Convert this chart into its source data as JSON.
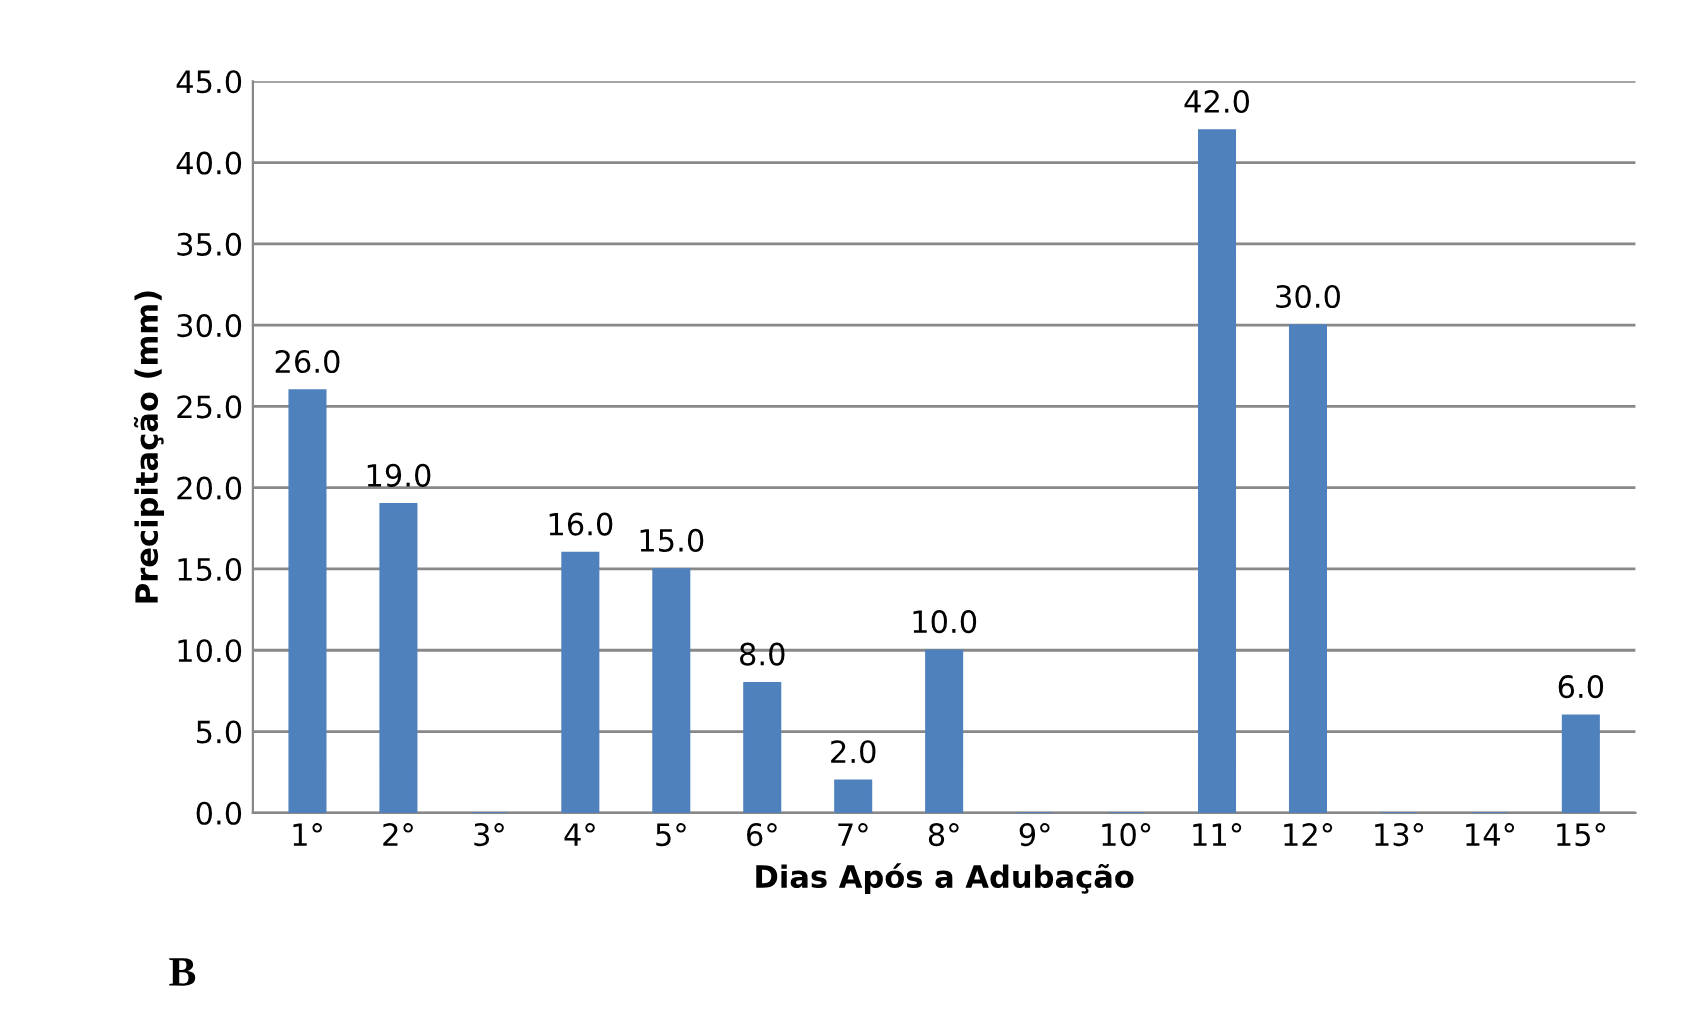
{
  "chart_data": {
    "type": "bar",
    "xlabel": "Dias Após a Adubação",
    "ylabel": "Precipitação (mm)",
    "categories": [
      "1°",
      "2°",
      "3°",
      "4°",
      "5°",
      "6°",
      "7°",
      "8°",
      "9°",
      "10°",
      "11°",
      "12°",
      "13°",
      "14°",
      "15°"
    ],
    "values": [
      26,
      19,
      0,
      16,
      15,
      8,
      2,
      10,
      0,
      0,
      42,
      30,
      0,
      0,
      6
    ],
    "value_labels": [
      "26.0",
      "19.0",
      null,
      "16.0",
      "15.0",
      "8.0",
      "2.0",
      "10.0",
      null,
      null,
      "42.0",
      "30.0",
      null,
      null,
      "6.0"
    ],
    "color": "#4f81bd",
    "ylim": [
      0,
      45
    ],
    "yticks": [
      {
        "value": 0,
        "label": "0.0"
      },
      {
        "value": 5,
        "label": "5.0"
      },
      {
        "value": 10,
        "label": "10.0"
      },
      {
        "value": 15,
        "label": "15.0"
      },
      {
        "value": 20,
        "label": "20.0"
      },
      {
        "value": 25,
        "label": "25.0"
      },
      {
        "value": 30,
        "label": "30.0"
      },
      {
        "value": 35,
        "label": "35.0"
      },
      {
        "value": 40,
        "label": "40.0"
      },
      {
        "value": 45,
        "label": "45.0"
      }
    ],
    "grid": "y",
    "annotations": [
      "B"
    ]
  }
}
